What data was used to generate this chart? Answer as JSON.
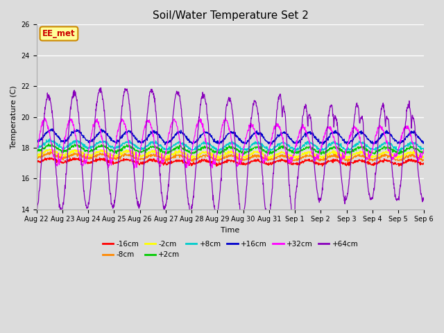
{
  "title": "Soil/Water Temperature Set 2",
  "xlabel": "Time",
  "ylabel": "Temperature (C)",
  "ylim": [
    14,
    26
  ],
  "yticks": [
    14,
    16,
    18,
    20,
    22,
    24,
    26
  ],
  "bg_color": "#dcdcdc",
  "series": [
    {
      "label": "-16cm",
      "color": "#ff0000",
      "base": 17.2,
      "amp": 0.12,
      "noise": 0.06
    },
    {
      "label": "-8cm",
      "color": "#ff8800",
      "base": 17.5,
      "amp": 0.14,
      "noise": 0.06
    },
    {
      "label": "-2cm",
      "color": "#ffff00",
      "base": 17.7,
      "amp": 0.16,
      "noise": 0.06
    },
    {
      "label": "+2cm",
      "color": "#00cc00",
      "base": 18.0,
      "amp": 0.18,
      "noise": 0.06
    },
    {
      "label": "+8cm",
      "color": "#00cccc",
      "base": 18.25,
      "amp": 0.22,
      "noise": 0.06
    },
    {
      "label": "+16cm",
      "color": "#0000cc",
      "base": 18.8,
      "amp": 0.35,
      "noise": 0.06
    },
    {
      "label": "+32cm",
      "color": "#ff00ff",
      "base": 18.5,
      "amp": 1.4,
      "noise": 0.08
    },
    {
      "label": "+64cm",
      "color": "#8800bb",
      "base": 17.8,
      "amp": 5.5,
      "noise": 0.12
    }
  ],
  "xtick_labels": [
    "Aug 22",
    "Aug 23",
    "Aug 24",
    "Aug 25",
    "Aug 26",
    "Aug 27",
    "Aug 28",
    "Aug 29",
    "Aug 30",
    "Aug 31",
    "Sep 1",
    "Sep 2",
    "Sep 3",
    "Sep 4",
    "Sep 5",
    "Sep 6"
  ],
  "annotation_text": "EE_met",
  "annotation_bg": "#ffff99",
  "annotation_border": "#cc8800",
  "annotation_text_color": "#cc0000"
}
